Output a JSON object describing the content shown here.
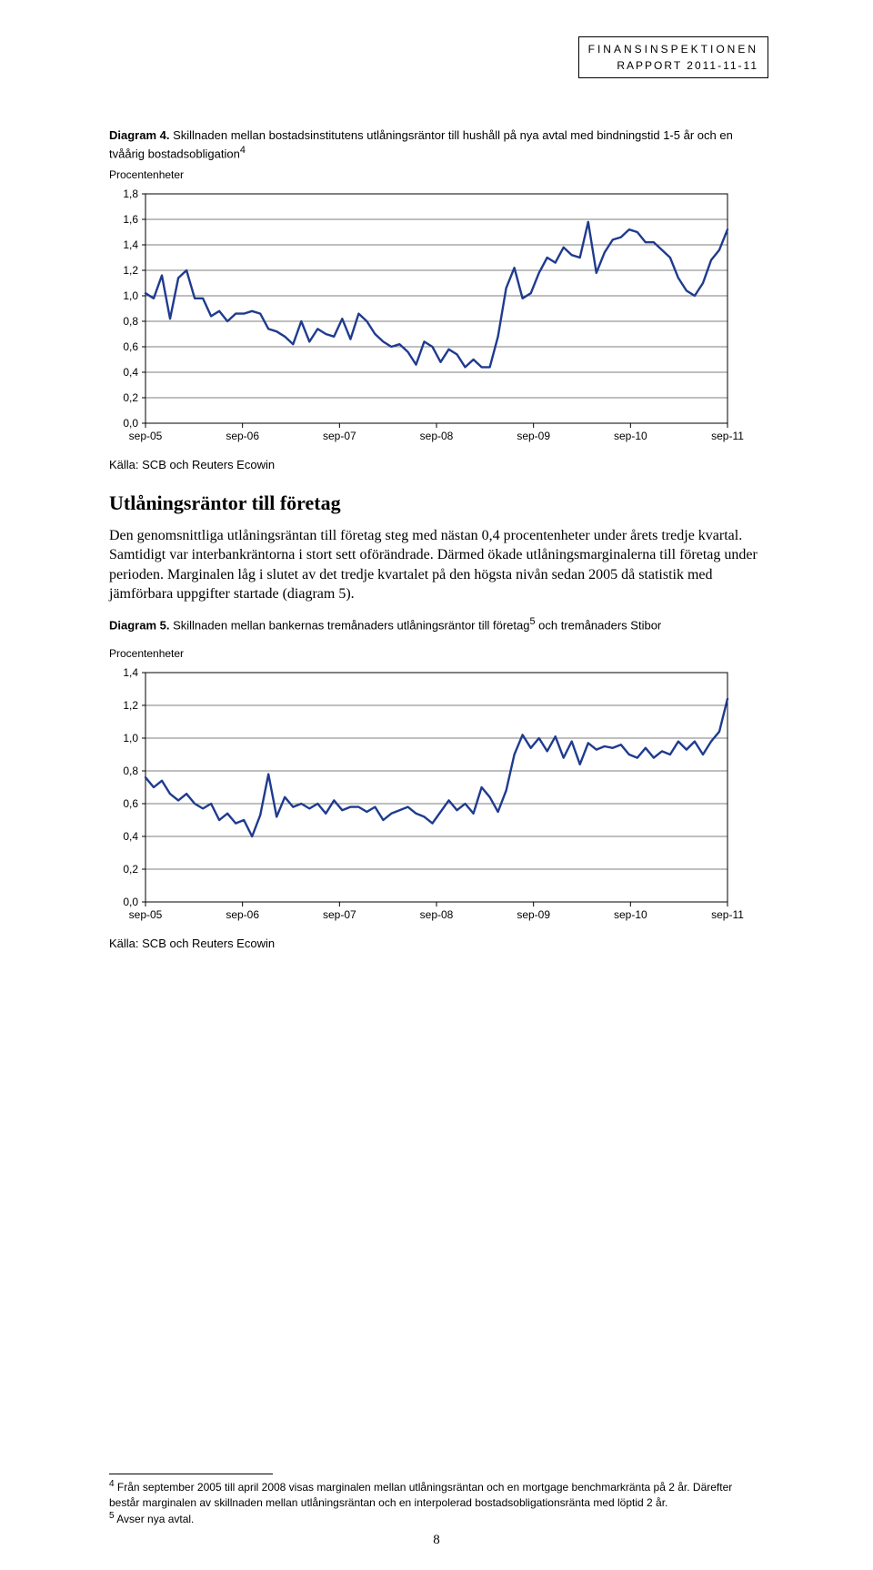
{
  "header": {
    "line1": "FINANSINSPEKTIONEN",
    "line2": "RAPPORT 2011-11-11"
  },
  "diagram4": {
    "title_prefix": "Diagram 4.",
    "title_rest": " Skillnaden mellan bostadsinstitutens utlåningsräntor till hushåll på nya avtal med bindningstid 1-5 år och en tvåårig bostadsobligation",
    "superscript": "4",
    "subtitle": "Procentenheter",
    "y_ticks": [
      "1,8",
      "1,6",
      "1,4",
      "1,2",
      "1,0",
      "0,8",
      "0,6",
      "0,4",
      "0,2",
      "0,0"
    ],
    "x_ticks": [
      "sep-05",
      "sep-06",
      "sep-07",
      "sep-08",
      "sep-09",
      "sep-10",
      "sep-11"
    ],
    "values": [
      1.02,
      0.98,
      1.16,
      0.82,
      1.14,
      1.2,
      0.98,
      0.98,
      0.84,
      0.88,
      0.8,
      0.86,
      0.86,
      0.88,
      0.86,
      0.74,
      0.72,
      0.68,
      0.62,
      0.8,
      0.64,
      0.74,
      0.7,
      0.68,
      0.82,
      0.66,
      0.86,
      0.8,
      0.7,
      0.64,
      0.6,
      0.62,
      0.56,
      0.46,
      0.64,
      0.6,
      0.48,
      0.58,
      0.54,
      0.44,
      0.5,
      0.44,
      0.44,
      0.68,
      1.06,
      1.22,
      0.98,
      1.02,
      1.18,
      1.3,
      1.26,
      1.38,
      1.32,
      1.3,
      1.58,
      1.18,
      1.34,
      1.44,
      1.46,
      1.52,
      1.5,
      1.42,
      1.42,
      1.36,
      1.3,
      1.14,
      1.04,
      1.0,
      1.1,
      1.28,
      1.36,
      1.52
    ],
    "ylim": [
      0.0,
      1.8
    ],
    "line_color": "#1f3b8f",
    "line_width": 2.4,
    "grid_color": "#000000",
    "background_color": "#ffffff",
    "tick_fontsize": 12
  },
  "source1": "Källa: SCB och Reuters Ecowin",
  "section_heading": "Utlåningsräntor till företag",
  "paragraph": "Den genomsnittliga utlåningsräntan till företag steg med nästan 0,4 procentenheter under årets tredje kvartal. Samtidigt var interbankräntorna i stort sett oförändrade. Därmed ökade utlåningsmarginalerna till företag under perioden. Marginalen låg i slutet av det tredje kvartalet på den högsta nivån sedan 2005 då statistik med jämförbara uppgifter startade (diagram 5).",
  "diagram5": {
    "title_prefix": "Diagram 5.",
    "title_rest": " Skillnaden mellan bankernas tremånaders utlåningsräntor till företag",
    "superscript": "5",
    "title_tail": " och tremånaders Stibor",
    "subtitle": "Procentenheter",
    "y_ticks": [
      "1,4",
      "1,2",
      "1,0",
      "0,8",
      "0,6",
      "0,4",
      "0,2",
      "0,0"
    ],
    "x_ticks": [
      "sep-05",
      "sep-06",
      "sep-07",
      "sep-08",
      "sep-09",
      "sep-10",
      "sep-11"
    ],
    "values": [
      0.76,
      0.7,
      0.74,
      0.66,
      0.62,
      0.66,
      0.6,
      0.57,
      0.6,
      0.5,
      0.54,
      0.48,
      0.5,
      0.4,
      0.53,
      0.78,
      0.52,
      0.64,
      0.58,
      0.6,
      0.57,
      0.6,
      0.54,
      0.62,
      0.56,
      0.58,
      0.58,
      0.55,
      0.58,
      0.5,
      0.54,
      0.56,
      0.58,
      0.54,
      0.52,
      0.48,
      0.55,
      0.62,
      0.56,
      0.6,
      0.54,
      0.7,
      0.64,
      0.55,
      0.68,
      0.9,
      1.02,
      0.94,
      1.0,
      0.92,
      1.01,
      0.88,
      0.98,
      0.84,
      0.97,
      0.93,
      0.95,
      0.94,
      0.96,
      0.9,
      0.88,
      0.94,
      0.88,
      0.92,
      0.9,
      0.98,
      0.93,
      0.98,
      0.9,
      0.98,
      1.04,
      1.24
    ],
    "ylim": [
      0.0,
      1.4
    ],
    "line_color": "#1f3b8f",
    "line_width": 2.4,
    "grid_color": "#000000",
    "background_color": "#ffffff",
    "tick_fontsize": 12
  },
  "source2": "Källa: SCB och Reuters Ecowin",
  "footnote4_num": "4",
  "footnote4": " Från september 2005 till april 2008 visas marginalen mellan utlåningsräntan och en mortgage benchmarkränta på 2 år. Därefter består marginalen av skillnaden mellan utlåningsräntan och en interpolerad bostadsobligationsränta med löptid 2 år.",
  "footnote5_num": "5",
  "footnote5": " Avser nya avtal.",
  "page_number": "8"
}
